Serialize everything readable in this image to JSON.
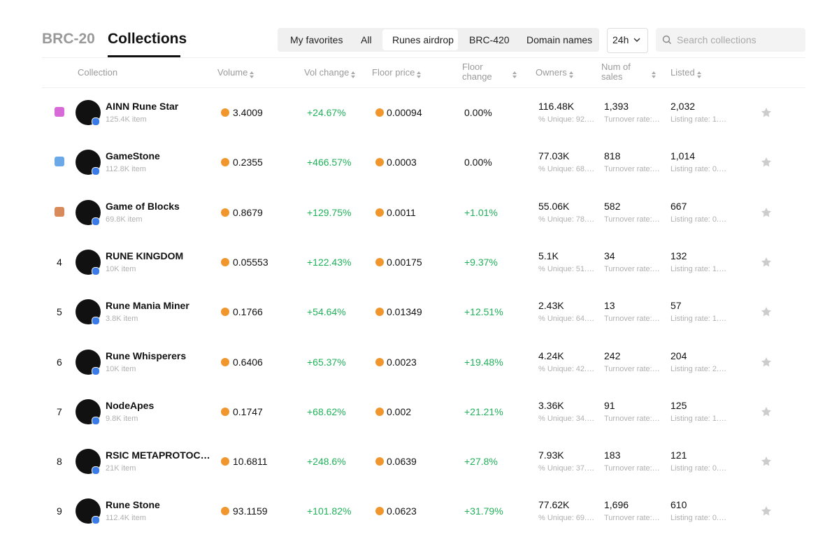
{
  "tabs": [
    "BRC-20",
    "Collections"
  ],
  "filters": [
    "My favorites",
    "All",
    "Runes airdrop",
    "BRC-420",
    "Domain names"
  ],
  "period": "24h",
  "search_placeholder": "Search collections",
  "columns": [
    "Collection",
    "Volume",
    "Vol change",
    "Floor price",
    "Floor change",
    "Owners",
    "Num of sales",
    "Listed"
  ],
  "rows": [
    {
      "rank": null,
      "name": "AINN Rune Star",
      "items": "125.4K item",
      "volume": "3.4009",
      "vol_change": "+24.67%",
      "floor_price": "0.00094",
      "floor_change": "0.00%",
      "owners": "116.48K",
      "unique": "% Unique: 92.…",
      "sales": "1,393",
      "turnover": "Turnover rate:…",
      "listed": "2,032",
      "listing_rate": "Listing rate: 1.…"
    },
    {
      "rank": null,
      "name": "GameStone",
      "items": "112.8K item",
      "volume": "0.2355",
      "vol_change": "+466.57%",
      "floor_price": "0.0003",
      "floor_change": "0.00%",
      "owners": "77.03K",
      "unique": "% Unique: 68.…",
      "sales": "818",
      "turnover": "Turnover rate:…",
      "listed": "1,014",
      "listing_rate": "Listing rate: 0.…"
    },
    {
      "rank": null,
      "name": "Game of Blocks",
      "items": "69.8K item",
      "volume": "0.8679",
      "vol_change": "+129.75%",
      "floor_price": "0.0011",
      "floor_change": "+1.01%",
      "owners": "55.06K",
      "unique": "% Unique: 78.…",
      "sales": "582",
      "turnover": "Turnover rate:…",
      "listed": "667",
      "listing_rate": "Listing rate: 0.…"
    },
    {
      "rank": "4",
      "name": "RUNE KINGDOM",
      "items": "10K item",
      "volume": "0.05553",
      "vol_change": "+122.43%",
      "floor_price": "0.00175",
      "floor_change": "+9.37%",
      "owners": "5.1K",
      "unique": "% Unique: 51.…",
      "sales": "34",
      "turnover": "Turnover rate:…",
      "listed": "132",
      "listing_rate": "Listing rate: 1.…"
    },
    {
      "rank": "5",
      "name": "Rune Mania Miner",
      "items": "3.8K item",
      "volume": "0.1766",
      "vol_change": "+54.64%",
      "floor_price": "0.01349",
      "floor_change": "+12.51%",
      "owners": "2.43K",
      "unique": "% Unique: 64.…",
      "sales": "13",
      "turnover": "Turnover rate:…",
      "listed": "57",
      "listing_rate": "Listing rate: 1.…"
    },
    {
      "rank": "6",
      "name": "Rune Whisperers",
      "items": "10K item",
      "volume": "0.6406",
      "vol_change": "+65.37%",
      "floor_price": "0.0023",
      "floor_change": "+19.48%",
      "owners": "4.24K",
      "unique": "% Unique: 42.…",
      "sales": "242",
      "turnover": "Turnover rate:…",
      "listed": "204",
      "listing_rate": "Listing rate: 2.…"
    },
    {
      "rank": "7",
      "name": "NodeApes",
      "items": "9.8K item",
      "volume": "0.1747",
      "vol_change": "+68.62%",
      "floor_price": "0.002",
      "floor_change": "+21.21%",
      "owners": "3.36K",
      "unique": "% Unique: 34.…",
      "sales": "91",
      "turnover": "Turnover rate:…",
      "listed": "125",
      "listing_rate": "Listing rate: 1.…"
    },
    {
      "rank": "8",
      "name": "RSIC METAPROTOC…",
      "items": "21K item",
      "volume": "10.6811",
      "vol_change": "+248.6%",
      "floor_price": "0.0639",
      "floor_change": "+27.8%",
      "owners": "7.93K",
      "unique": "% Unique: 37.…",
      "sales": "183",
      "turnover": "Turnover rate:…",
      "listed": "121",
      "listing_rate": "Listing rate: 0.…"
    },
    {
      "rank": "9",
      "name": "Rune Stone",
      "items": "112.4K item",
      "volume": "93.1159",
      "vol_change": "+101.82%",
      "floor_price": "0.0623",
      "floor_change": "+31.79%",
      "owners": "77.62K",
      "unique": "% Unique: 69.…",
      "sales": "1,696",
      "turnover": "Turnover rate:…",
      "listed": "610",
      "listing_rate": "Listing rate: 0.…"
    }
  ]
}
